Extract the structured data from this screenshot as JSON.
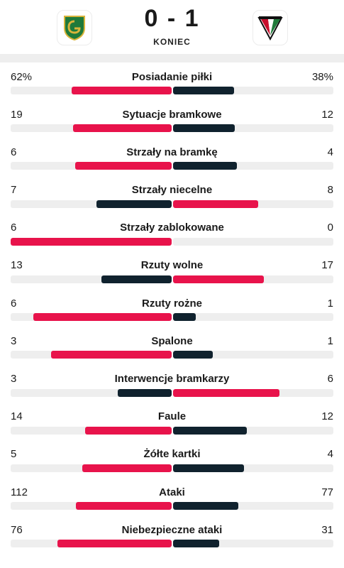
{
  "match": {
    "score": "0 - 1",
    "status": "KONIEC",
    "home_logo": "gks-katowice-crest-icon",
    "away_logo": "zaglebie-sosnowiec-crest-icon"
  },
  "colors": {
    "leader": "#e8134b",
    "trailer": "#10222e",
    "track": "#eeeeee"
  },
  "stats": [
    {
      "label": "Posiadanie piłki",
      "home": "62%",
      "away": "38%",
      "home_value": 62,
      "away_value": 38
    },
    {
      "label": "Sytuacje bramkowe",
      "home": "19",
      "away": "12",
      "home_value": 19,
      "away_value": 12
    },
    {
      "label": "Strzały na bramkę",
      "home": "6",
      "away": "4",
      "home_value": 6,
      "away_value": 4
    },
    {
      "label": "Strzały niecelne",
      "home": "7",
      "away": "8",
      "home_value": 7,
      "away_value": 8
    },
    {
      "label": "Strzały zablokowane",
      "home": "6",
      "away": "0",
      "home_value": 6,
      "away_value": 0
    },
    {
      "label": "Rzuty wolne",
      "home": "13",
      "away": "17",
      "home_value": 13,
      "away_value": 17
    },
    {
      "label": "Rzuty rożne",
      "home": "6",
      "away": "1",
      "home_value": 6,
      "away_value": 1
    },
    {
      "label": "Spalone",
      "home": "3",
      "away": "1",
      "home_value": 3,
      "away_value": 1
    },
    {
      "label": "Interwencje bramkarzy",
      "home": "3",
      "away": "6",
      "home_value": 3,
      "away_value": 6
    },
    {
      "label": "Faule",
      "home": "14",
      "away": "12",
      "home_value": 14,
      "away_value": 12
    },
    {
      "label": "Żółte kartki",
      "home": "5",
      "away": "4",
      "home_value": 5,
      "away_value": 4
    },
    {
      "label": "Ataki",
      "home": "112",
      "away": "77",
      "home_value": 112,
      "away_value": 77
    },
    {
      "label": "Niebezpieczne ataki",
      "home": "76",
      "away": "31",
      "home_value": 76,
      "away_value": 31
    }
  ]
}
